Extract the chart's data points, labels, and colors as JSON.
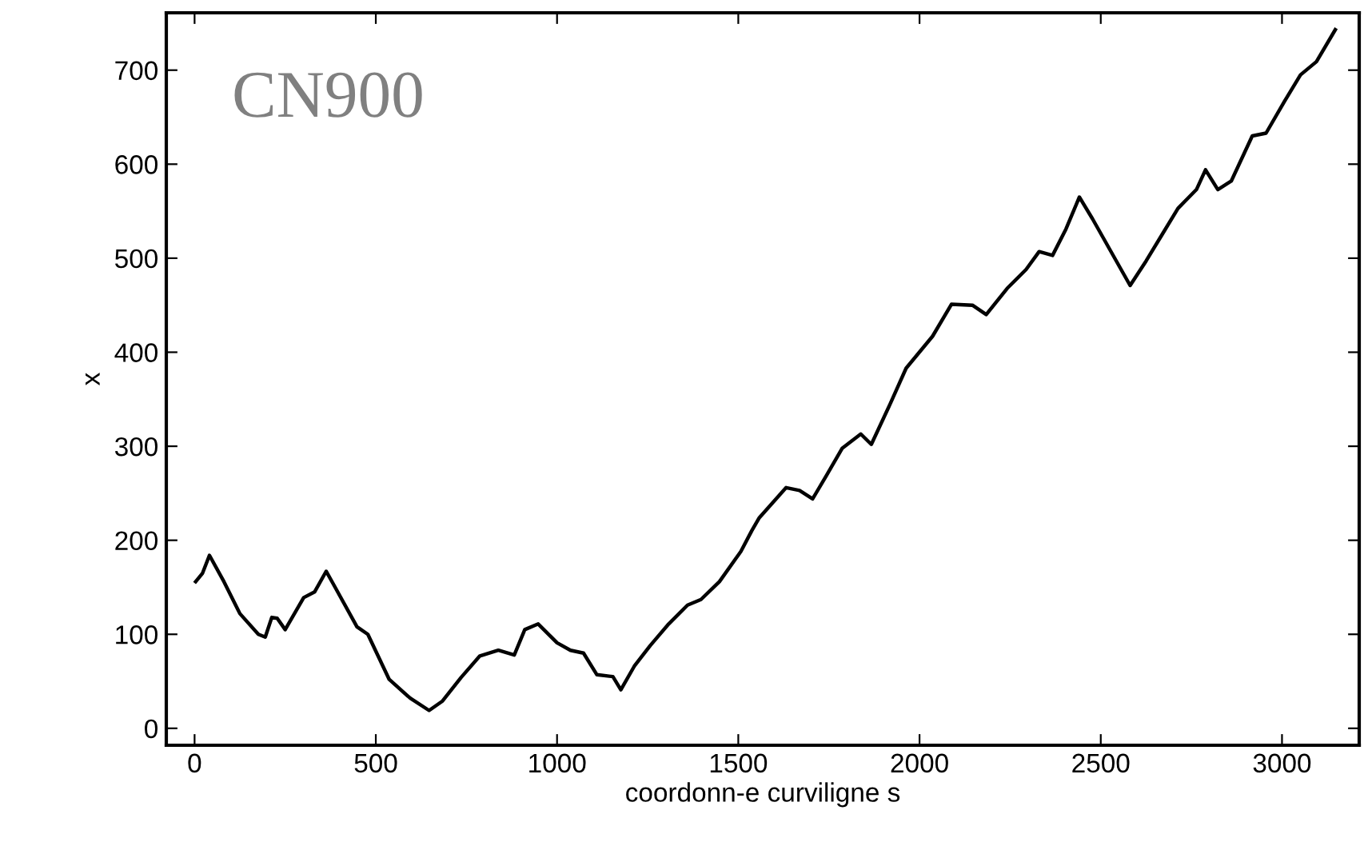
{
  "chart_data": {
    "type": "line",
    "xlabel": "coordonn-e curviligne s",
    "ylabel": "x",
    "annotations": [
      "CN900"
    ],
    "xlim": [
      -78,
      3213
    ],
    "ylim": [
      -18,
      761
    ],
    "xticks": [
      0,
      500,
      1000,
      1500,
      2000,
      2500,
      3000
    ],
    "yticks": [
      0,
      100,
      200,
      300,
      400,
      500,
      600,
      700
    ],
    "grid": false,
    "legend": false,
    "marker": "none",
    "line_style": "solid",
    "series": [
      {
        "color": "#000000",
        "x": [
          3,
          22,
          41,
          81,
          125,
          176,
          195,
          213,
          228,
          250,
          301,
          331,
          363,
          382,
          448,
          478,
          537,
          595,
          647,
          684,
          735,
          787,
          838,
          882,
          911,
          948,
          1000,
          1037,
          1073,
          1110,
          1154,
          1176,
          1213,
          1257,
          1308,
          1360,
          1397,
          1448,
          1492,
          1507,
          1537,
          1558,
          1632,
          1669,
          1705,
          1742,
          1787,
          1838,
          1867,
          1919,
          1963,
          2036,
          2088,
          2146,
          2184,
          2242,
          2294,
          2330,
          2367,
          2404,
          2441,
          2477,
          2581,
          2625,
          2669,
          2713,
          2764,
          2789,
          2823,
          2860,
          2918,
          2956,
          3007,
          3051,
          3095,
          3147
        ],
        "values": [
          156,
          165,
          184,
          156,
          122,
          100,
          97,
          118,
          117,
          105,
          139,
          145,
          167,
          154,
          108,
          100,
          52,
          32,
          19,
          29,
          54,
          77,
          83,
          78,
          105,
          111,
          91,
          83,
          80,
          57,
          55,
          41,
          66,
          88,
          111,
          131,
          137,
          156,
          180,
          188,
          210,
          224,
          256,
          253,
          244,
          268,
          298,
          313,
          302,
          345,
          383,
          417,
          451,
          450,
          440,
          468,
          488,
          507,
          503,
          531,
          565,
          542,
          471,
          497,
          525,
          553,
          573,
          594,
          573,
          582,
          630,
          633,
          667,
          695,
          709,
          743
        ]
      }
    ]
  }
}
